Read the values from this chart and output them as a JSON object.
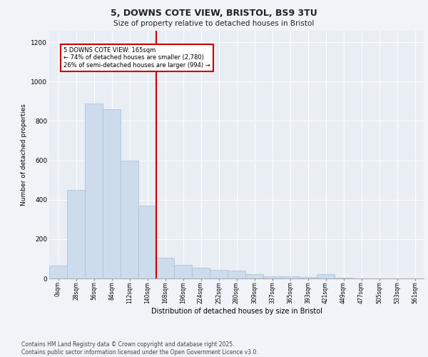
{
  "title_line1": "5, DOWNS COTE VIEW, BRISTOL, BS9 3TU",
  "title_line2": "Size of property relative to detached houses in Bristol",
  "xlabel": "Distribution of detached houses by size in Bristol",
  "ylabel": "Number of detached properties",
  "bar_color": "#ccdcec",
  "bar_edgecolor": "#a8c0d4",
  "background_color": "#e8eef4",
  "grid_color": "#ffffff",
  "vline_color": "#cc0000",
  "annotation_text": "5 DOWNS COTE VIEW: 165sqm\n← 74% of detached houses are smaller (2,780)\n26% of semi-detached houses are larger (994) →",
  "footnote": "Contains HM Land Registry data © Crown copyright and database right 2025.\nContains public sector information licensed under the Open Government Licence v3.0.",
  "categories": [
    "0sqm",
    "28sqm",
    "56sqm",
    "84sqm",
    "112sqm",
    "140sqm",
    "168sqm",
    "196sqm",
    "224sqm",
    "252sqm",
    "280sqm",
    "309sqm",
    "337sqm",
    "365sqm",
    "393sqm",
    "421sqm",
    "449sqm",
    "477sqm",
    "505sqm",
    "533sqm",
    "561sqm"
  ],
  "values": [
    65,
    450,
    890,
    860,
    600,
    370,
    105,
    70,
    55,
    45,
    40,
    22,
    10,
    10,
    8,
    22,
    4,
    0,
    0,
    0,
    0
  ],
  "ylim": [
    0,
    1260
  ],
  "yticks": [
    0,
    200,
    400,
    600,
    800,
    1000,
    1200
  ],
  "fig_width": 6.0,
  "fig_height": 5.0,
  "dpi": 100
}
